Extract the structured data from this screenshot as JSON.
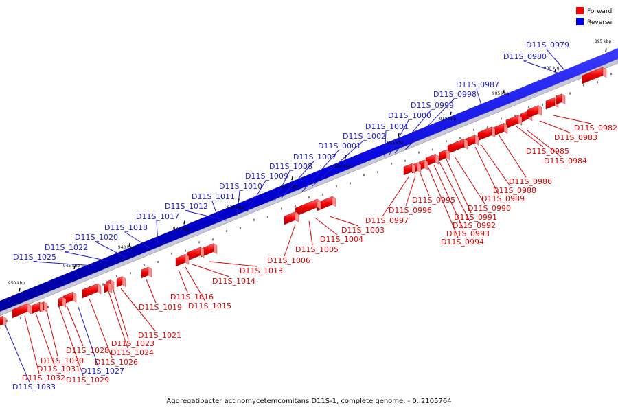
{
  "caption": "Aggregatibacter actinomycetemcomitans D11S-1, complete genome. - 0..2105764",
  "legend": {
    "forward": {
      "label": "Forward",
      "color": "#ff0000"
    },
    "reverse": {
      "label": "Reverse",
      "color": "#0000ee"
    }
  },
  "ticks": [
    "895 kbp",
    "900 kbp",
    "905 kbp",
    "910 kbp",
    "915 kbp",
    "920 kbp",
    "925 kbp",
    "930 kbp",
    "935 kbp",
    "940 kbp",
    "945 kbp",
    "950 kbp"
  ],
  "reverse_genes": [
    "D11S_0979",
    "D11S_0980",
    "D11S_0987",
    "D11S_0998",
    "D11S_0999",
    "D11S_1000",
    "D11S_1001",
    "D11S_1002",
    "D11S_0001",
    "D11S_1007",
    "D11S_1008",
    "D11S_1009",
    "D11S_1010",
    "D11S_1011",
    "D11S_1012",
    "D11S_1017",
    "D11S_1018",
    "D11S_1020",
    "D11S_1022",
    "D11S_1025"
  ],
  "forward_genes": [
    "D11S_0982",
    "D11S_0983",
    "D11S_0985",
    "D11S_0984",
    "D11S_0986",
    "D11S_0988",
    "D11S_0989",
    "D11S_0990",
    "D11S_0991",
    "D11S_0992",
    "D11S_0993",
    "D11S_0994",
    "D11S_0995",
    "D11S_0996",
    "D11S_0997",
    "D11S_1003",
    "D11S_1004",
    "D11S_1005",
    "D11S_1006",
    "D11S_1013",
    "D11S_1014",
    "D11S_1015",
    "D11S_1016",
    "D11S_1019",
    "D11S_1021",
    "D11S_1023",
    "D11S_1024",
    "D11S_1026",
    "D11S_1028",
    "D11S_1030",
    "D11S_1031",
    "D11S_1032",
    "D11S_1029"
  ],
  "reverse_bottom_genes": [
    "D11S_1027",
    "D11S_1033"
  ]
}
